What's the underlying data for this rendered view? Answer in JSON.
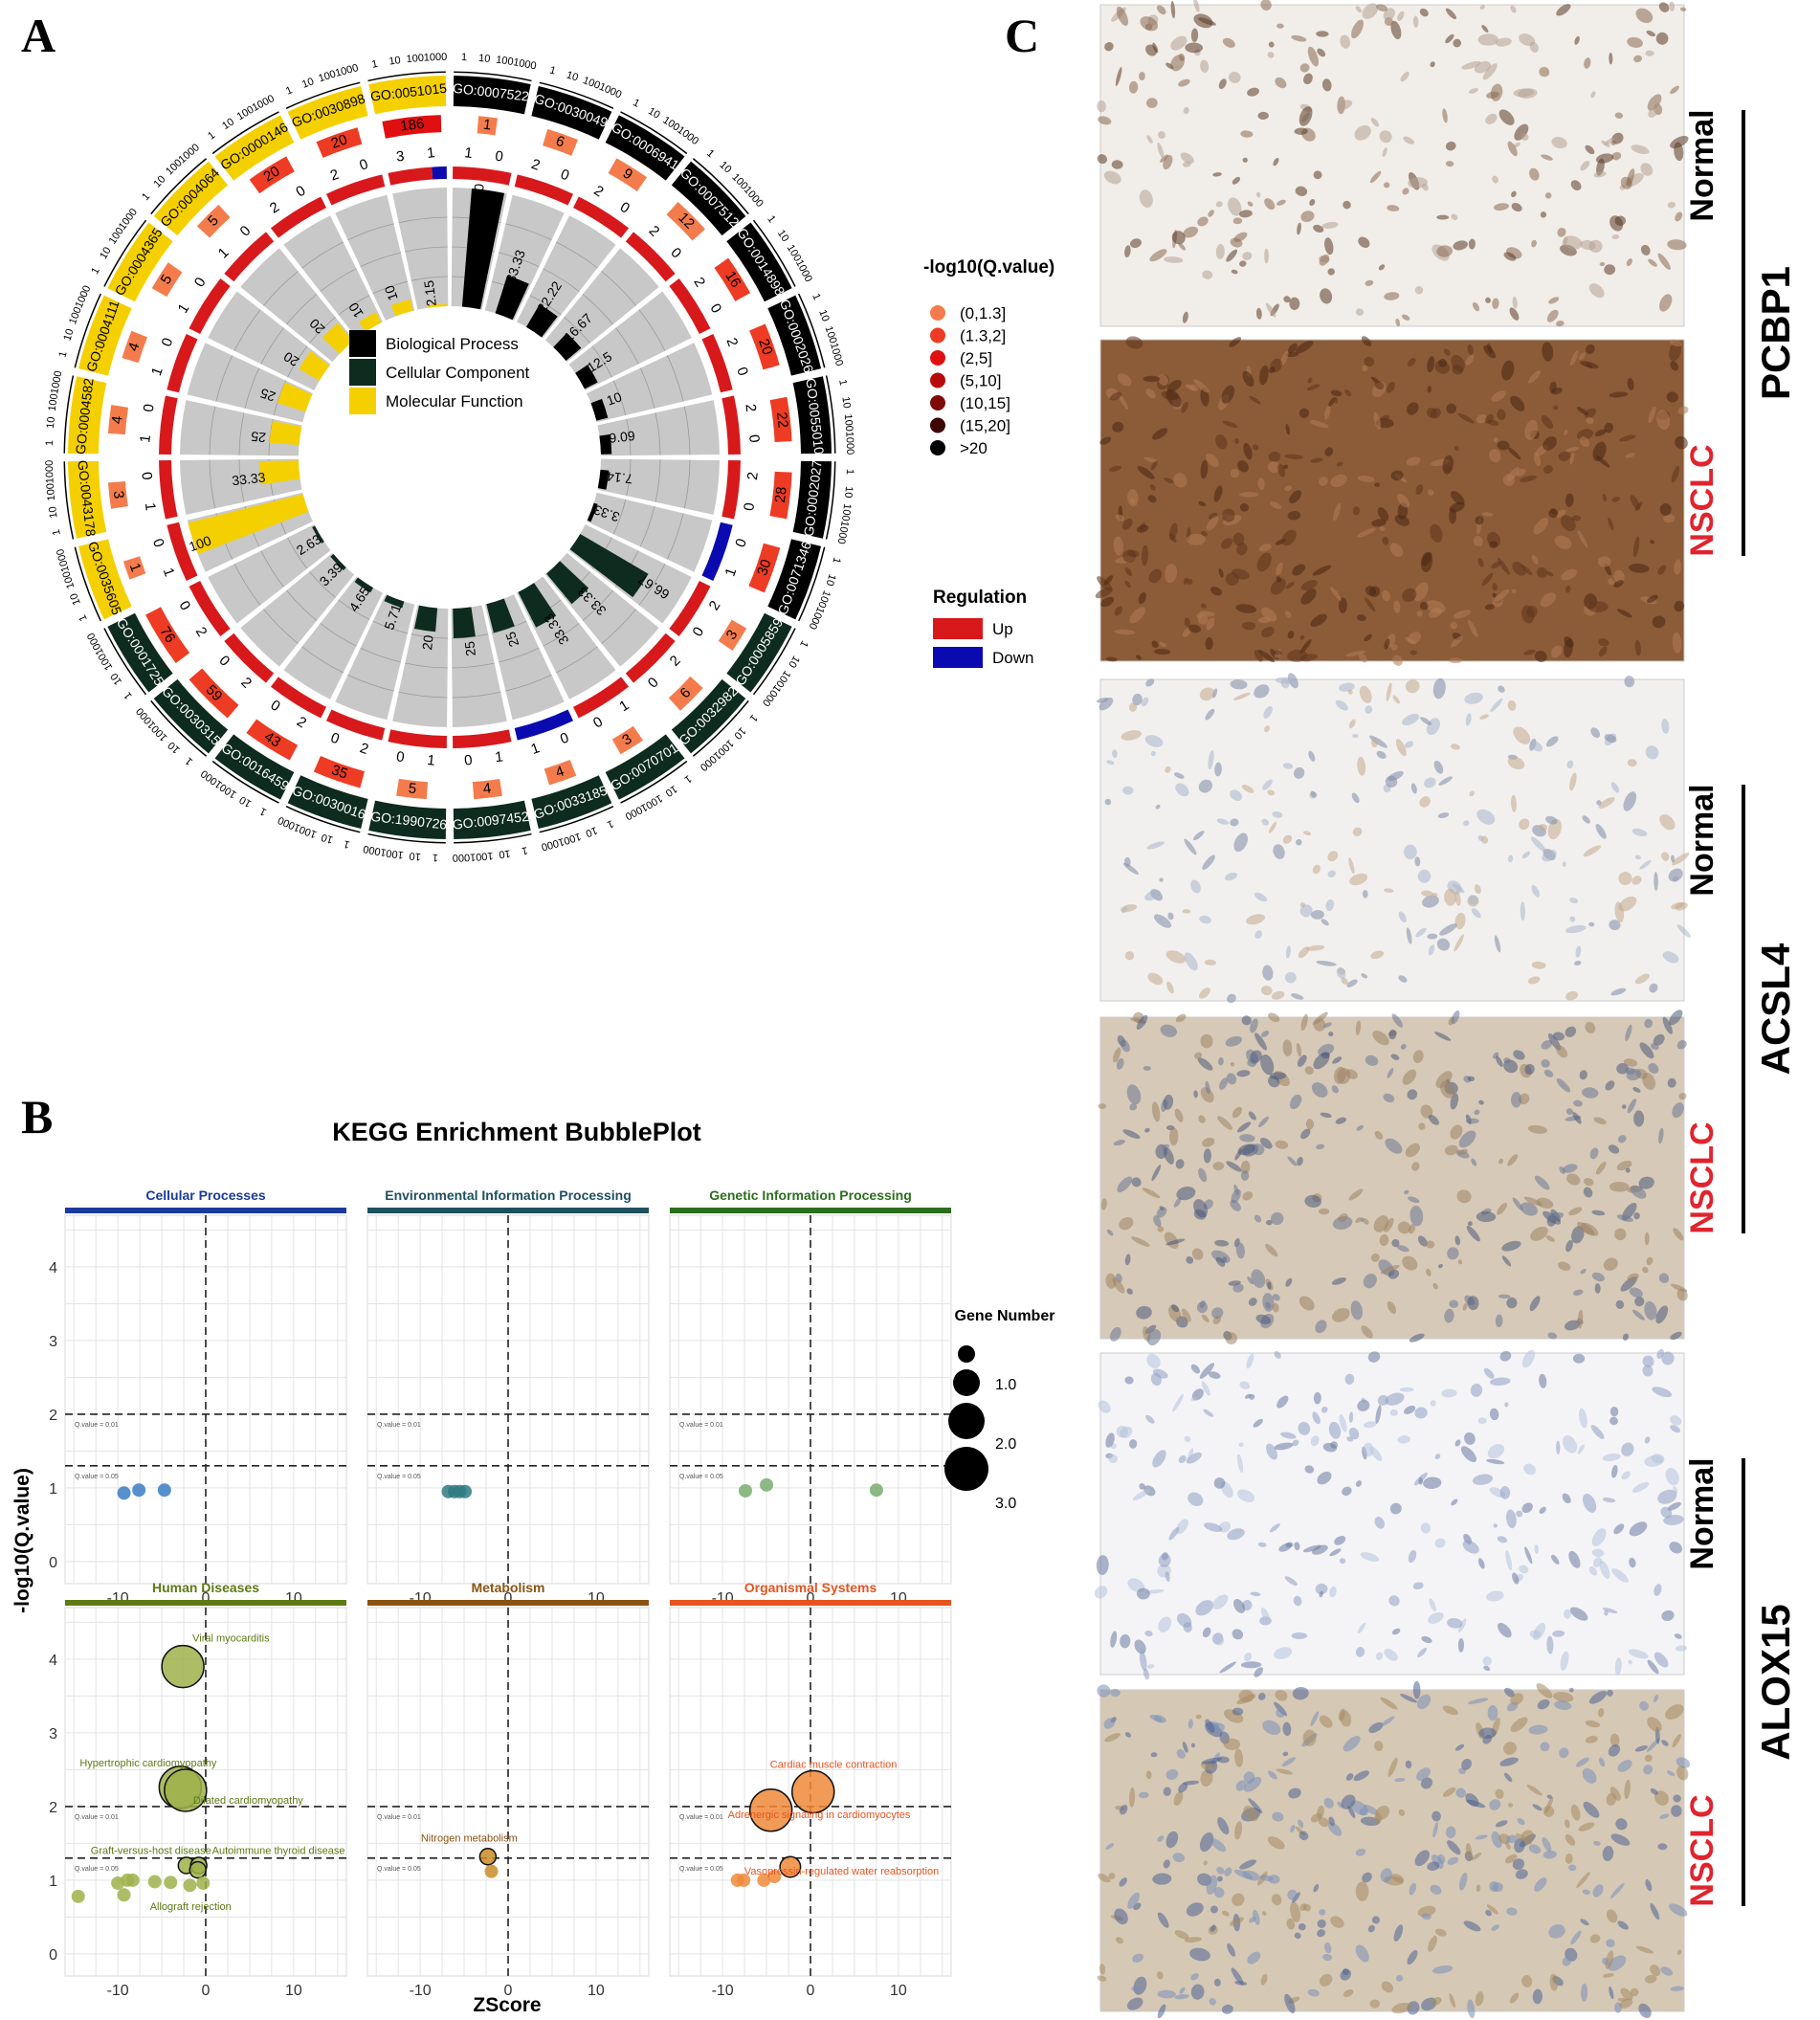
{
  "panels": {
    "a": "A",
    "b": "B",
    "c": "C"
  },
  "chart_data": [
    {
      "type": "circular_bar",
      "id": "go_circos",
      "legend_categories": [
        {
          "name": "Biological Process",
          "color": "#000000"
        },
        {
          "name": "Cellular Component",
          "color": "#0d2b1f"
        },
        {
          "name": "Molecular Function",
          "color": "#f5d000"
        }
      ],
      "qvalue_legend": {
        "title": "-log10(Q.value)",
        "bins": [
          {
            "label": "(0,1.3]",
            "color": "#f47c4c"
          },
          {
            "label": "(1.3,2]",
            "color": "#ee3b24"
          },
          {
            "label": "(2,5]",
            "color": "#e01010"
          },
          {
            "label": "(5,10]",
            "color": "#b80b0b"
          },
          {
            "label": "(10,15]",
            "color": "#7e0a0a"
          },
          {
            "label": "(15,20]",
            "color": "#3e0505"
          },
          {
            "label": ">20",
            "color": "#000000"
          }
        ]
      },
      "regulation_legend": {
        "title": "Regulation",
        "items": [
          {
            "label": "Up",
            "color": "#d7191c"
          },
          {
            "label": "Down",
            "color": "#0a0ab0"
          }
        ]
      },
      "scale_ticks": [
        "1",
        "10",
        "100",
        "1000"
      ],
      "terms": [
        {
          "go": "GO:0007522",
          "category": "Biological Process",
          "count": "1",
          "up": 1,
          "down": 0,
          "rich": 100
        },
        {
          "go": "GO:0030049",
          "category": "Biological Process",
          "count": "6",
          "up": 2,
          "down": 0,
          "rich": 33.33
        },
        {
          "go": "GO:0006941",
          "category": "Biological Process",
          "count": "9",
          "up": 2,
          "down": 0,
          "rich": 22.22
        },
        {
          "go": "GO:0007512",
          "category": "Biological Process",
          "count": "12",
          "up": 2,
          "down": 0,
          "rich": 16.67
        },
        {
          "go": "GO:0014898",
          "category": "Biological Process",
          "count": "16",
          "up": 2,
          "down": 0,
          "rich": 12.5
        },
        {
          "go": "GO:0002026",
          "category": "Biological Process",
          "count": "20",
          "up": 2,
          "down": 0,
          "rich": 10
        },
        {
          "go": "GO:0055010",
          "category": "Biological Process",
          "count": "22",
          "up": 2,
          "down": 0,
          "rich": 9.09
        },
        {
          "go": "GO:0002027",
          "category": "Biological Process",
          "count": "28",
          "up": 2,
          "down": 0,
          "rich": 7.14
        },
        {
          "go": "GO:0071346",
          "category": "Biological Process",
          "count": "30",
          "up": 0,
          "down": 1,
          "rich": 3.33
        },
        {
          "go": "GO:0005859",
          "category": "Cellular Component",
          "count": "3",
          "up": 2,
          "down": 0,
          "rich": 66.67
        },
        {
          "go": "GO:0032982",
          "category": "Cellular Component",
          "count": "6",
          "up": 2,
          "down": 0,
          "rich": 33.33
        },
        {
          "go": "GO:0070701",
          "category": "Cellular Component",
          "count": "3",
          "up": 1,
          "down": 0,
          "rich": 33.33
        },
        {
          "go": "GO:0033185",
          "category": "Cellular Component",
          "count": "4",
          "up": 0,
          "down": 1,
          "rich": 25
        },
        {
          "go": "GO:0097452",
          "category": "Cellular Component",
          "count": "4",
          "up": 1,
          "down": 0,
          "rich": 25
        },
        {
          "go": "GO:1990726",
          "category": "Cellular Component",
          "count": "5",
          "up": 1,
          "down": 0,
          "rich": 20
        },
        {
          "go": "GO:0030016",
          "category": "Cellular Component",
          "count": "35",
          "up": 2,
          "down": 0,
          "rich": 5.71
        },
        {
          "go": "GO:0016459",
          "category": "Cellular Component",
          "count": "43",
          "up": 2,
          "down": 0,
          "rich": 4.65
        },
        {
          "go": "GO:0030315",
          "category": "Cellular Component",
          "count": "59",
          "up": 2,
          "down": 0,
          "rich": 3.39
        },
        {
          "go": "GO:0001725",
          "category": "Cellular Component",
          "count": "76",
          "up": 2,
          "down": 0,
          "rich": 2.63
        },
        {
          "go": "GO:0035605",
          "category": "Molecular Function",
          "count": "1",
          "up": 1,
          "down": 0,
          "rich": 100
        },
        {
          "go": "GO:0043178",
          "category": "Molecular Function",
          "count": "3",
          "up": 1,
          "down": 0,
          "rich": 33.33
        },
        {
          "go": "GO:0004582",
          "category": "Molecular Function",
          "count": "4",
          "up": 1,
          "down": 0,
          "rich": 25
        },
        {
          "go": "GO:0004111",
          "category": "Molecular Function",
          "count": "4",
          "up": 1,
          "down": 0,
          "rich": 25
        },
        {
          "go": "GO:0004365",
          "category": "Molecular Function",
          "count": "5",
          "up": 1,
          "down": 0,
          "rich": 20
        },
        {
          "go": "GO:0004064",
          "category": "Molecular Function",
          "count": "5",
          "up": 1,
          "down": 0,
          "rich": 20
        },
        {
          "go": "GO:0000146",
          "category": "Molecular Function",
          "count": "20",
          "up": 2,
          "down": 0,
          "rich": 10
        },
        {
          "go": "GO:0030898",
          "category": "Molecular Function",
          "count": "20",
          "up": 2,
          "down": 0,
          "rich": 10
        },
        {
          "go": "GO:0051015",
          "category": "Molecular Function",
          "count": "186",
          "up": 3,
          "down": 1,
          "rich": 2.15
        }
      ]
    },
    {
      "type": "scatter",
      "id": "kegg_bubble",
      "title": "KEGG Enrichment BubblePlot",
      "xlabel": "ZScore",
      "ylabel": "-log10(Q.value)",
      "xlim": [
        -16,
        16
      ],
      "ylim": [
        -0.3,
        4.7
      ],
      "x_ticks": [
        "-10",
        "0",
        "10"
      ],
      "y_ticks": [
        "0",
        "1",
        "2",
        "3",
        "4"
      ],
      "threshold_labels": {
        "q01": "Q.value = 0.01",
        "q05": "Q.value = 0.05"
      },
      "size_legend": {
        "title": "Gene Number",
        "values": [
          "1.0",
          "2.0",
          "3.0"
        ]
      },
      "facets": [
        {
          "name": "Cellular Processes",
          "color": "#1a3a9c",
          "point_color": "#3a7cc4",
          "points": [
            {
              "x": -9.3,
              "y": 0.93,
              "g": 1
            },
            {
              "x": -7.6,
              "y": 0.97,
              "g": 1
            },
            {
              "x": -4.7,
              "y": 0.97,
              "g": 1
            }
          ]
        },
        {
          "name": "Environmental Information Processing",
          "color": "#1e5060",
          "point_color": "#2f7b83",
          "points": [
            {
              "x": -6.8,
              "y": 0.95,
              "g": 1
            },
            {
              "x": -6.1,
              "y": 0.95,
              "g": 1
            },
            {
              "x": -5.5,
              "y": 0.95,
              "g": 1
            },
            {
              "x": -4.9,
              "y": 0.95,
              "g": 1
            }
          ]
        },
        {
          "name": "Genetic Information Processing",
          "color": "#2c6e1c",
          "point_color": "#79ad6e",
          "points": [
            {
              "x": -7.4,
              "y": 0.96,
              "g": 1
            },
            {
              "x": -5.0,
              "y": 1.04,
              "g": 1
            },
            {
              "x": 7.5,
              "y": 0.97,
              "g": 1
            }
          ]
        },
        {
          "name": "Human Diseases",
          "color": "#5d7a14",
          "point_color": "#9fb24a",
          "points": [
            {
              "x": -2.6,
              "y": 3.9,
              "g": 3,
              "label": "Viral myocarditis"
            },
            {
              "x": -2.9,
              "y": 2.26,
              "g": 3,
              "label": "Hypertrophic cardiomyopathy"
            },
            {
              "x": -2.3,
              "y": 2.22,
              "g": 3,
              "label": "Dilated cardiomyopathy"
            },
            {
              "x": -2.2,
              "y": 1.2,
              "g": 1.2,
              "label": "Graft-versus-host disease"
            },
            {
              "x": -0.8,
              "y": 1.2,
              "g": 1.2,
              "label": "Autoimmune thyroid disease"
            },
            {
              "x": -0.9,
              "y": 1.14,
              "g": 1.2,
              "label": "Allograft rejection"
            },
            {
              "x": -14.5,
              "y": 0.78,
              "g": 1
            },
            {
              "x": -10.0,
              "y": 0.96,
              "g": 1
            },
            {
              "x": -9.3,
              "y": 0.8,
              "g": 1
            },
            {
              "x": -8.9,
              "y": 1.0,
              "g": 1
            },
            {
              "x": -8.3,
              "y": 1.0,
              "g": 1
            },
            {
              "x": -5.8,
              "y": 0.98,
              "g": 1
            },
            {
              "x": -4.0,
              "y": 0.97,
              "g": 1
            },
            {
              "x": -1.8,
              "y": 0.93,
              "g": 1
            },
            {
              "x": -0.3,
              "y": 0.96,
              "g": 1
            }
          ]
        },
        {
          "name": "Metabolism",
          "color": "#8a5312",
          "point_color": "#c98d27",
          "points": [
            {
              "x": -2.3,
              "y": 1.32,
              "g": 1.2,
              "label": "Nitrogen metabolism"
            },
            {
              "x": -1.9,
              "y": 1.12,
              "g": 1
            }
          ]
        },
        {
          "name": "Organismal Systems",
          "color": "#e6541f",
          "point_color": "#f08a3a",
          "points": [
            {
              "x": 0.3,
              "y": 2.2,
              "g": 3,
              "label": "Cardiac muscle contraction"
            },
            {
              "x": -4.5,
              "y": 1.95,
              "g": 3,
              "label": "Adrenergic signaling in cardiomyocytes"
            },
            {
              "x": -2.3,
              "y": 1.18,
              "g": 1.5,
              "label": "Vasopressin-regulated water reabsorption"
            },
            {
              "x": -8.3,
              "y": 1.0,
              "g": 1
            },
            {
              "x": -7.6,
              "y": 1.0,
              "g": 1
            },
            {
              "x": -5.3,
              "y": 1.0,
              "g": 1
            },
            {
              "x": -4.1,
              "y": 1.05,
              "g": 1
            }
          ]
        }
      ]
    }
  ],
  "ihc": {
    "genes": [
      {
        "gene": "PCBP1",
        "normal_label": "Normal",
        "tumor_label": "NSCLC"
      },
      {
        "gene": "ACSL4",
        "normal_label": "Normal",
        "tumor_label": "NSCLC"
      },
      {
        "gene": "ALOX15",
        "normal_label": "Normal",
        "tumor_label": "NSCLC"
      }
    ],
    "colors": {
      "normal_text": "#000000",
      "tumor_text": "#e0242e"
    }
  }
}
